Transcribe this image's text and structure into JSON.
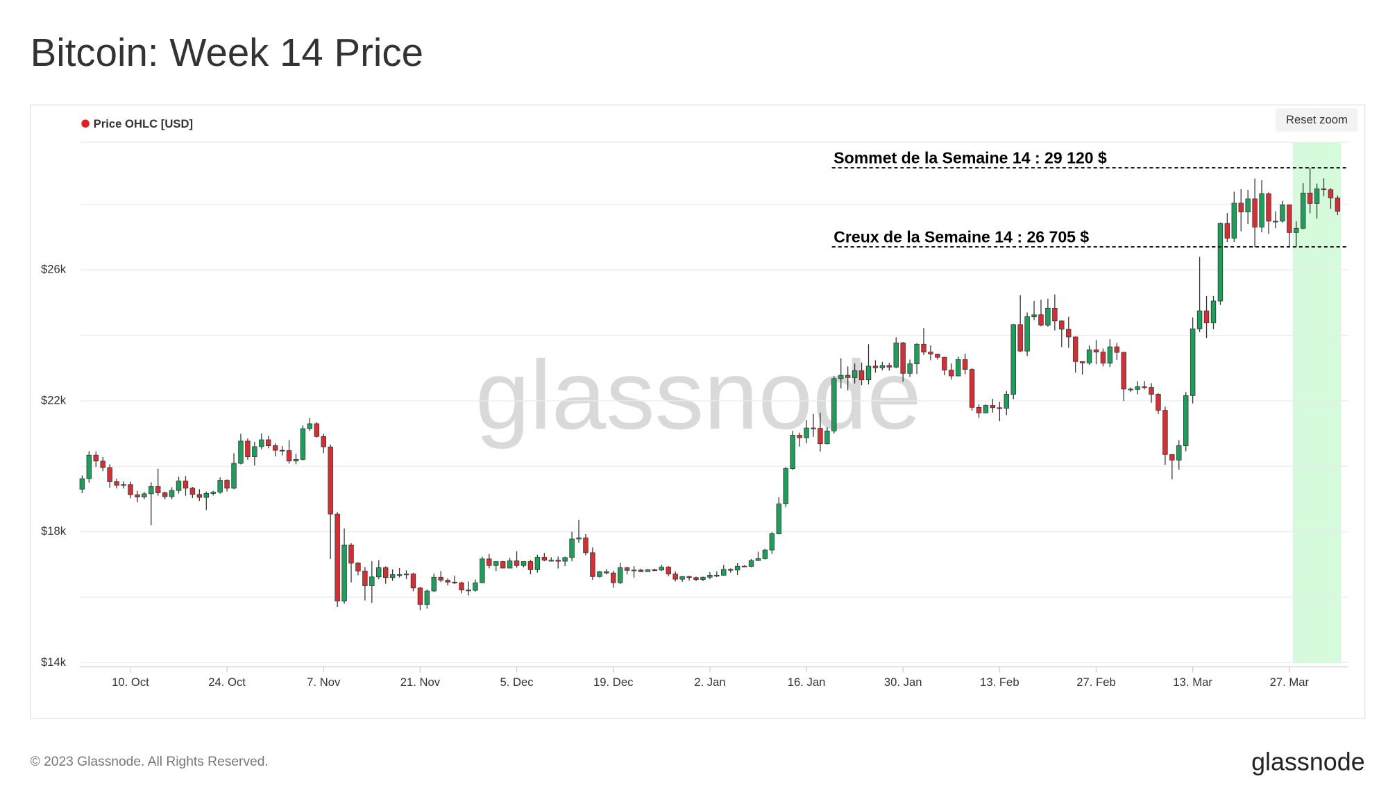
{
  "chart_data": {
    "type": "candlestick",
    "title": "Bitcoin: Week 14 Price",
    "legend": "Price OHLC [USD]",
    "legend_color": "#e02020",
    "button": "Reset zoom",
    "footer": "© 2023 Glassnode. All Rights Reserved.",
    "logo": "glassnode",
    "watermark": "glassnode",
    "up_color": "#1e9e5a",
    "down_color": "#d32f35",
    "highlight": [
      175.5,
      182.5
    ],
    "highlight_color": "#d6fbdc",
    "ylim": [
      13870,
      29900
    ],
    "yticks": [
      {
        "value": 14000,
        "label": "$14k"
      },
      {
        "value": 18000,
        "label": "$18k"
      },
      {
        "value": 22000,
        "label": "$22k"
      },
      {
        "value": 26000,
        "label": "$26k"
      }
    ],
    "grid_lines": [
      16000,
      20000,
      24000,
      28000
    ],
    "xlim": [
      -0.3,
      183.5
    ],
    "xticks": [
      {
        "value": 7,
        "label": "10. Oct"
      },
      {
        "value": 21,
        "label": "24. Oct"
      },
      {
        "value": 35,
        "label": "7. Nov"
      },
      {
        "value": 49,
        "label": "21. Nov"
      },
      {
        "value": 63,
        "label": "5. Dec"
      },
      {
        "value": 77,
        "label": "19. Dec"
      },
      {
        "value": 91,
        "label": "2. Jan"
      },
      {
        "value": 105,
        "label": "16. Jan"
      },
      {
        "value": 119,
        "label": "30. Jan"
      },
      {
        "value": 133,
        "label": "13. Feb"
      },
      {
        "value": 147,
        "label": "27. Feb"
      },
      {
        "value": 161,
        "label": "13. Mar"
      },
      {
        "value": 175,
        "label": "27. Mar"
      }
    ],
    "annotations": [
      {
        "text": "Sommet de la Semaine 14 : 29 120 $",
        "value": 29120
      },
      {
        "text": "Creux de la Semaine 14 : 26 705 $",
        "value": 26705
      }
    ],
    "candles": [
      [
        19300,
        19720,
        19180,
        19620
      ],
      [
        19620,
        20460,
        19500,
        20340
      ],
      [
        20340,
        20450,
        19980,
        20160
      ],
      [
        20160,
        20280,
        19850,
        19960
      ],
      [
        19960,
        20060,
        19340,
        19530
      ],
      [
        19530,
        19620,
        19320,
        19420
      ],
      [
        19420,
        19540,
        19320,
        19440
      ],
      [
        19440,
        19530,
        19020,
        19130
      ],
      [
        19130,
        19250,
        18900,
        19060
      ],
      [
        19060,
        19220,
        18990,
        19160
      ],
      [
        19160,
        19510,
        18200,
        19380
      ],
      [
        19380,
        19930,
        19100,
        19190
      ],
      [
        19190,
        19230,
        18990,
        19070
      ],
      [
        19070,
        19360,
        18990,
        19260
      ],
      [
        19260,
        19680,
        19170,
        19550
      ],
      [
        19550,
        19700,
        19100,
        19330
      ],
      [
        19330,
        19370,
        19030,
        19140
      ],
      [
        19140,
        19300,
        18940,
        19050
      ],
      [
        19050,
        19230,
        18660,
        19170
      ],
      [
        19170,
        19250,
        19110,
        19210
      ],
      [
        19210,
        19660,
        19160,
        19570
      ],
      [
        19570,
        19600,
        19230,
        19330
      ],
      [
        19330,
        20400,
        19300,
        20090
      ],
      [
        20090,
        20990,
        20060,
        20770
      ],
      [
        20770,
        20850,
        20200,
        20290
      ],
      [
        20290,
        20750,
        20020,
        20600
      ],
      [
        20600,
        21000,
        20520,
        20810
      ],
      [
        20810,
        20930,
        20550,
        20630
      ],
      [
        20630,
        20700,
        20300,
        20490
      ],
      [
        20490,
        20620,
        20330,
        20480
      ],
      [
        20480,
        20800,
        20080,
        20160
      ],
      [
        20160,
        20380,
        20060,
        20210
      ],
      [
        20210,
        21250,
        20180,
        21150
      ],
      [
        21150,
        21470,
        21080,
        21300
      ],
      [
        21300,
        21350,
        20880,
        20910
      ],
      [
        20910,
        20990,
        20400,
        20590
      ],
      [
        20590,
        20660,
        17170,
        18540
      ],
      [
        18540,
        18600,
        15700,
        15880
      ],
      [
        15880,
        18100,
        15800,
        17590
      ],
      [
        17590,
        17650,
        16450,
        17040
      ],
      [
        17040,
        17070,
        16670,
        16800
      ],
      [
        16800,
        16920,
        15900,
        16350
      ],
      [
        16350,
        17100,
        15830,
        16620
      ],
      [
        16620,
        17130,
        16550,
        16900
      ],
      [
        16900,
        16940,
        16410,
        16600
      ],
      [
        16600,
        16850,
        16500,
        16690
      ],
      [
        16690,
        16890,
        16600,
        16690
      ],
      [
        16690,
        16820,
        16550,
        16710
      ],
      [
        16710,
        16750,
        16180,
        16280
      ],
      [
        16280,
        16320,
        15600,
        15780
      ],
      [
        15780,
        16240,
        15650,
        16190
      ],
      [
        16190,
        16720,
        16160,
        16610
      ],
      [
        16610,
        16800,
        16460,
        16520
      ],
      [
        16520,
        16580,
        16360,
        16460
      ],
      [
        16460,
        16660,
        16400,
        16440
      ],
      [
        16440,
        16480,
        16120,
        16220
      ],
      [
        16220,
        16480,
        16050,
        16210
      ],
      [
        16210,
        16540,
        16170,
        16440
      ],
      [
        16440,
        17240,
        16430,
        17170
      ],
      [
        17170,
        17320,
        16880,
        16970
      ],
      [
        16970,
        17100,
        16800,
        17090
      ],
      [
        17090,
        17110,
        16880,
        16890
      ],
      [
        16890,
        17200,
        16880,
        17110
      ],
      [
        17110,
        17400,
        16900,
        16970
      ],
      [
        16970,
        17100,
        16910,
        17090
      ],
      [
        17090,
        17140,
        16700,
        16840
      ],
      [
        16840,
        17300,
        16750,
        17220
      ],
      [
        17220,
        17350,
        17100,
        17130
      ],
      [
        17130,
        17220,
        17090,
        17130
      ],
      [
        17130,
        17240,
        16880,
        17100
      ],
      [
        17100,
        17240,
        16950,
        17210
      ],
      [
        17210,
        18000,
        17100,
        17780
      ],
      [
        17780,
        18360,
        17660,
        17810
      ],
      [
        17810,
        17930,
        17280,
        17360
      ],
      [
        17360,
        17520,
        16530,
        16630
      ],
      [
        16630,
        16800,
        16600,
        16780
      ],
      [
        16780,
        16860,
        16690,
        16740
      ],
      [
        16740,
        16810,
        16290,
        16440
      ],
      [
        16440,
        17050,
        16400,
        16900
      ],
      [
        16900,
        16920,
        16700,
        16820
      ],
      [
        16820,
        16950,
        16600,
        16830
      ],
      [
        16830,
        16870,
        16760,
        16780
      ],
      [
        16780,
        16860,
        16770,
        16840
      ],
      [
        16840,
        16870,
        16790,
        16830
      ],
      [
        16830,
        16990,
        16800,
        16920
      ],
      [
        16920,
        16950,
        16640,
        16710
      ],
      [
        16710,
        16790,
        16480,
        16550
      ],
      [
        16550,
        16650,
        16470,
        16630
      ],
      [
        16630,
        16650,
        16510,
        16600
      ],
      [
        16600,
        16630,
        16490,
        16540
      ],
      [
        16540,
        16630,
        16490,
        16610
      ],
      [
        16610,
        16770,
        16550,
        16670
      ],
      [
        16670,
        16790,
        16610,
        16670
      ],
      [
        16670,
        16980,
        16660,
        16850
      ],
      [
        16850,
        16880,
        16750,
        16830
      ],
      [
        16830,
        17040,
        16680,
        16950
      ],
      [
        16950,
        16980,
        16920,
        16940
      ],
      [
        16940,
        17170,
        16910,
        17120
      ],
      [
        17120,
        17390,
        17110,
        17180
      ],
      [
        17180,
        17480,
        17150,
        17440
      ],
      [
        17440,
        17990,
        17320,
        17940
      ],
      [
        17940,
        19050,
        17920,
        18850
      ],
      [
        18850,
        19980,
        18750,
        19930
      ],
      [
        19930,
        21080,
        19890,
        20950
      ],
      [
        20950,
        21030,
        20600,
        20870
      ],
      [
        20870,
        21410,
        20700,
        21170
      ],
      [
        21170,
        21600,
        20900,
        21160
      ],
      [
        21160,
        21640,
        20450,
        20690
      ],
      [
        20690,
        21190,
        20670,
        21080
      ],
      [
        21080,
        22750,
        21000,
        22680
      ],
      [
        22680,
        23300,
        22380,
        22780
      ],
      [
        22780,
        23050,
        22320,
        22710
      ],
      [
        22710,
        23140,
        22530,
        22920
      ],
      [
        22920,
        23170,
        22480,
        22640
      ],
      [
        22640,
        23730,
        22500,
        23060
      ],
      [
        23060,
        23240,
        22860,
        23010
      ],
      [
        23010,
        23190,
        22930,
        23080
      ],
      [
        23080,
        23160,
        22920,
        23030
      ],
      [
        23030,
        23940,
        23000,
        23770
      ],
      [
        23770,
        23800,
        22580,
        22840
      ],
      [
        22840,
        23260,
        22730,
        23130
      ],
      [
        23130,
        23760,
        22820,
        23730
      ],
      [
        23730,
        24220,
        23400,
        23490
      ],
      [
        23490,
        23690,
        23240,
        23430
      ],
      [
        23430,
        23440,
        23260,
        23330
      ],
      [
        23330,
        23340,
        22780,
        22940
      ],
      [
        22940,
        23140,
        22650,
        22760
      ],
      [
        22760,
        23350,
        22750,
        23260
      ],
      [
        23260,
        23440,
        22810,
        22960
      ],
      [
        22960,
        23000,
        21700,
        21800
      ],
      [
        21800,
        21890,
        21480,
        21630
      ],
      [
        21630,
        21890,
        21620,
        21860
      ],
      [
        21860,
        22060,
        21640,
        21790
      ],
      [
        21790,
        21970,
        21380,
        21770
      ],
      [
        21770,
        22300,
        21560,
        22200
      ],
      [
        22200,
        24350,
        22050,
        24330
      ],
      [
        24330,
        25230,
        23490,
        23520
      ],
      [
        23520,
        24700,
        23370,
        24570
      ],
      [
        24570,
        25050,
        24470,
        24630
      ],
      [
        24630,
        25090,
        24280,
        24310
      ],
      [
        24310,
        25120,
        24260,
        24830
      ],
      [
        24830,
        25250,
        24150,
        24440
      ],
      [
        24440,
        24460,
        23640,
        24190
      ],
      [
        24190,
        24570,
        23620,
        23950
      ],
      [
        23950,
        23970,
        22860,
        23200
      ],
      [
        23200,
        23210,
        22800,
        23160
      ],
      [
        23160,
        23690,
        23100,
        23560
      ],
      [
        23560,
        23860,
        23120,
        23490
      ],
      [
        23490,
        23600,
        23050,
        23150
      ],
      [
        23150,
        23880,
        23030,
        23650
      ],
      [
        23650,
        23770,
        23250,
        23480
      ],
      [
        23480,
        23500,
        22000,
        22360
      ],
      [
        22360,
        22410,
        22270,
        22350
      ],
      [
        22350,
        22600,
        22200,
        22430
      ],
      [
        22430,
        22600,
        22350,
        22410
      ],
      [
        22410,
        22540,
        21940,
        22200
      ],
      [
        22200,
        22240,
        21600,
        21710
      ],
      [
        21710,
        21820,
        20040,
        20360
      ],
      [
        20360,
        20370,
        19600,
        20190
      ],
      [
        20190,
        20800,
        19900,
        20630
      ],
      [
        20630,
        22270,
        20460,
        22160
      ],
      [
        22160,
        24550,
        21920,
        24200
      ],
      [
        24200,
        26400,
        24100,
        24750
      ],
      [
        24750,
        25200,
        23920,
        24380
      ],
      [
        24380,
        25200,
        24190,
        25050
      ],
      [
        25050,
        27450,
        24930,
        27420
      ],
      [
        27420,
        27740,
        26850,
        26970
      ],
      [
        26970,
        28390,
        26850,
        28040
      ],
      [
        28040,
        28470,
        27180,
        27770
      ],
      [
        27770,
        28440,
        27400,
        28170
      ],
      [
        28170,
        28790,
        26700,
        27310
      ],
      [
        27310,
        28740,
        27150,
        28330
      ],
      [
        28330,
        28370,
        27100,
        27490
      ],
      [
        27490,
        27790,
        27270,
        27490
      ],
      [
        27490,
        28110,
        27440,
        27990
      ],
      [
        27990,
        28000,
        26700,
        27140
      ],
      [
        27140,
        27480,
        26700,
        27270
      ],
      [
        27270,
        28650,
        27240,
        28350
      ],
      [
        28350,
        29120,
        27730,
        28030
      ],
      [
        28030,
        28640,
        27570,
        28480
      ],
      [
        28480,
        28800,
        28250,
        28450
      ],
      [
        28450,
        28500,
        27870,
        28200
      ],
      [
        28200,
        28270,
        27680,
        27790
      ]
    ]
  }
}
